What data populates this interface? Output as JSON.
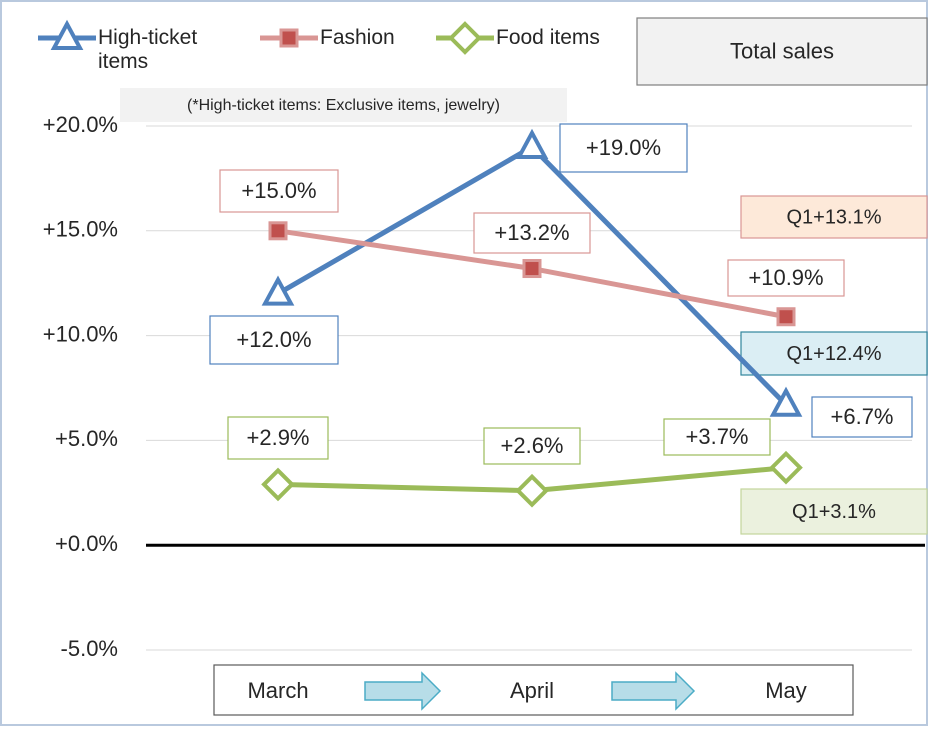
{
  "chart_data": {
    "type": "line",
    "categories": [
      "March",
      "April",
      "May"
    ],
    "series": [
      {
        "name": "High-ticket items",
        "color": "#4f81bd",
        "marker": "triangle",
        "values": [
          12.0,
          19.0,
          6.7
        ],
        "value_labels": [
          "+12.0%",
          "+19.0%",
          "+6.7%"
        ]
      },
      {
        "name": "Fashion",
        "color": "#d99694",
        "marker": "square",
        "values": [
          15.0,
          13.2,
          10.9
        ],
        "value_labels": [
          "+15.0%",
          "+13.2%",
          "+10.9%"
        ]
      },
      {
        "name": "Food items",
        "color": "#9bbb59",
        "marker": "diamond",
        "values": [
          2.9,
          2.6,
          3.7
        ],
        "value_labels": [
          "+2.9%",
          "+2.6%",
          "+3.7%"
        ]
      }
    ],
    "ylim": [
      -5,
      20
    ],
    "yticks": [
      {
        "value": -5,
        "label": "-5.0%"
      },
      {
        "value": 0,
        "label": "+0.0%"
      },
      {
        "value": 5,
        "label": "+5.0%"
      },
      {
        "value": 10,
        "label": "+10.0%"
      },
      {
        "value": 15,
        "label": "+15.0%"
      },
      {
        "value": 20,
        "label": "+20.0%"
      }
    ],
    "grid": true,
    "annotations": [
      "Total sales",
      "(*High-ticket items: Exclusive items, jewelry)",
      "Q1+13.1%",
      "Q1+12.4%",
      "Q1+3.1%"
    ]
  }
}
